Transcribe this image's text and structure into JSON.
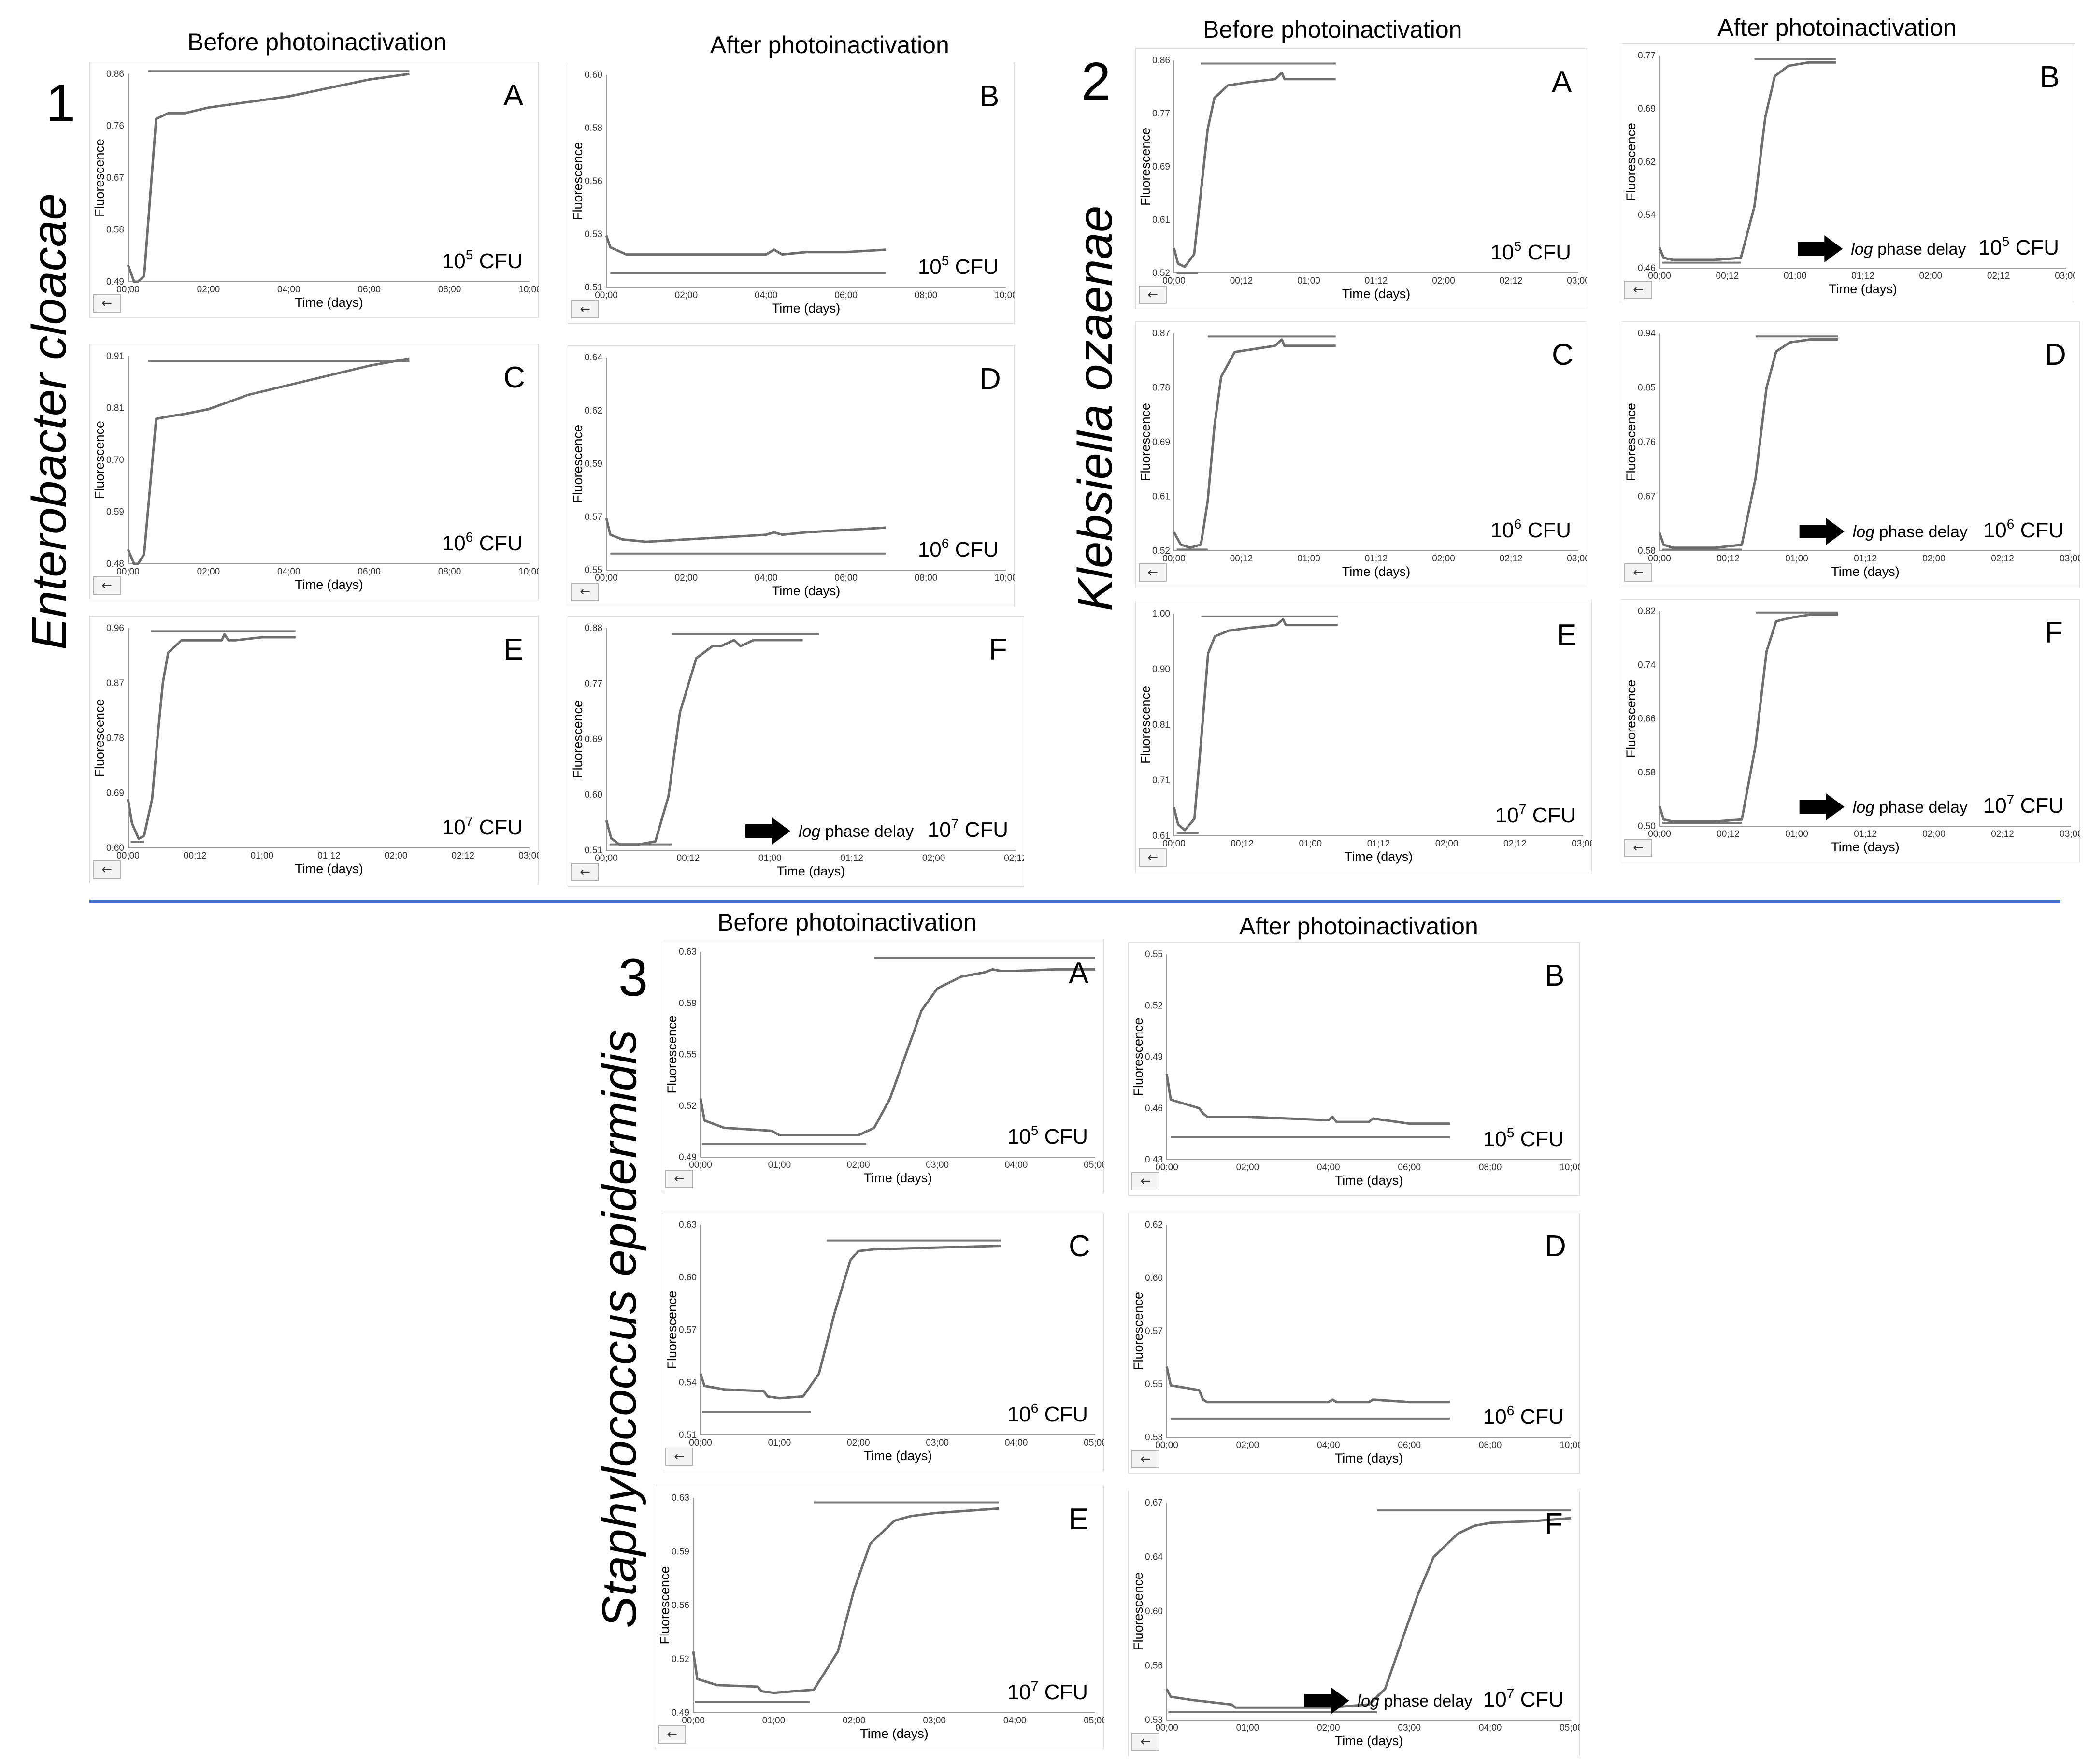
{
  "sections": [
    {
      "number": "1",
      "species": "Enterobacter cloacae",
      "before_label": "Before photoinactivation",
      "after_label": "After photoinactivation"
    },
    {
      "number": "2",
      "species": "Klebsiella ozaenae",
      "before_label": "Before photoinactivation",
      "after_label": "After photoinactivation"
    },
    {
      "number": "3",
      "species": "Staphylococcus epidermidis",
      "before_label": "Before photoinactivation",
      "after_label": "After photoinactivation"
    }
  ],
  "ylabel": "Fluorescence",
  "xlabel": "Time (days)",
  "cfu_unit": "CFU",
  "arrow_label_log": "log",
  "arrow_label_rest": "phase delay",
  "colors": {
    "curve": "#6e6e6e",
    "axis": "#9a9a9a",
    "panel_bg": "#ffffff",
    "frame": "#dcdcdc",
    "divider": "#4472c4"
  },
  "chart_data": [
    {
      "id": "1A",
      "type": "line",
      "letter": "A",
      "cfu_exp": "5",
      "yticks": [
        "0.86",
        "0.76",
        "0.67",
        "0.58",
        "0.49"
      ],
      "xticks": [
        "00;00",
        "02;00",
        "04;00",
        "06;00",
        "08;00",
        "10;00"
      ],
      "x": [
        0,
        0.15,
        0.25,
        0.4,
        0.7,
        1.0,
        1.4,
        2,
        3,
        4,
        5,
        6,
        7
      ],
      "y": [
        0.52,
        0.49,
        0.49,
        0.5,
        0.78,
        0.79,
        0.79,
        0.8,
        0.81,
        0.82,
        0.835,
        0.85,
        0.86
      ],
      "xlim": [
        0,
        10
      ],
      "ylim": [
        0.49,
        0.86
      ],
      "thresholds": [
        0.865
      ],
      "threshold_x": [
        [
          0.5,
          7
        ]
      ],
      "arrow": false
    },
    {
      "id": "1B",
      "type": "line",
      "letter": "B",
      "cfu_exp": "5",
      "yticks": [
        "0.60",
        "0.58",
        "0.56",
        "0.53",
        "0.51"
      ],
      "xticks": [
        "00;00",
        "02;00",
        "04;00",
        "06;00",
        "08;00",
        "10;00"
      ],
      "x": [
        0,
        0.1,
        0.5,
        1,
        2,
        3,
        4,
        4.2,
        4.4,
        5,
        6,
        7
      ],
      "y": [
        0.532,
        0.527,
        0.524,
        0.524,
        0.524,
        0.524,
        0.524,
        0.526,
        0.524,
        0.525,
        0.525,
        0.526
      ],
      "xlim": [
        0,
        10
      ],
      "ylim": [
        0.51,
        0.6
      ],
      "thresholds": [
        0.516
      ],
      "threshold_x": [
        [
          0.1,
          7
        ]
      ],
      "arrow": false
    },
    {
      "id": "1C",
      "type": "line",
      "letter": "C",
      "cfu_exp": "6",
      "yticks": [
        "0.91",
        "0.81",
        "0.70",
        "0.59",
        "0.48"
      ],
      "xticks": [
        "00;00",
        "02;00",
        "04;00",
        "06;00",
        "08;00",
        "10;00"
      ],
      "x": [
        0,
        0.15,
        0.25,
        0.4,
        0.7,
        1.0,
        1.4,
        2,
        3,
        4,
        5,
        6,
        7
      ],
      "y": [
        0.51,
        0.48,
        0.48,
        0.5,
        0.78,
        0.785,
        0.79,
        0.8,
        0.83,
        0.85,
        0.87,
        0.89,
        0.905
      ],
      "xlim": [
        0,
        10
      ],
      "ylim": [
        0.48,
        0.91
      ],
      "thresholds": [
        0.9
      ],
      "threshold_x": [
        [
          0.5,
          7
        ]
      ],
      "arrow": false
    },
    {
      "id": "1D",
      "type": "line",
      "letter": "D",
      "cfu_exp": "6",
      "yticks": [
        "0.64",
        "0.62",
        "0.59",
        "0.57",
        "0.55"
      ],
      "xticks": [
        "00;00",
        "02;00",
        "04;00",
        "06;00",
        "08;00",
        "10;00"
      ],
      "x": [
        0,
        0.1,
        0.4,
        1,
        2,
        3,
        4,
        4.2,
        4.4,
        5,
        6,
        7
      ],
      "y": [
        0.572,
        0.565,
        0.563,
        0.562,
        0.563,
        0.564,
        0.565,
        0.566,
        0.565,
        0.566,
        0.567,
        0.568
      ],
      "xlim": [
        0,
        10
      ],
      "ylim": [
        0.55,
        0.64
      ],
      "thresholds": [
        0.557
      ],
      "threshold_x": [
        [
          0.1,
          7
        ]
      ],
      "arrow": false
    },
    {
      "id": "1E",
      "type": "line",
      "letter": "E",
      "cfu_exp": "7",
      "yticks": [
        "0.96",
        "0.87",
        "0.78",
        "0.69",
        "0.60"
      ],
      "xticks": [
        "00;00",
        "00;12",
        "01;00",
        "01;12",
        "02;00",
        "02;12",
        "03;00"
      ],
      "x": [
        0,
        0.03,
        0.08,
        0.12,
        0.18,
        0.22,
        0.26,
        0.3,
        0.4,
        0.55,
        0.7,
        0.72,
        0.75,
        0.8,
        1.0,
        1.2,
        1.25
      ],
      "y": [
        0.68,
        0.64,
        0.615,
        0.62,
        0.68,
        0.78,
        0.87,
        0.92,
        0.94,
        0.94,
        0.94,
        0.95,
        0.94,
        0.94,
        0.945,
        0.945,
        0.945
      ],
      "xlim": [
        0,
        3
      ],
      "ylim": [
        0.6,
        0.96
      ],
      "thresholds": [
        0.955,
        0.61
      ],
      "threshold_x": [
        [
          0.17,
          1.25
        ],
        [
          0.02,
          0.12
        ]
      ],
      "arrow": false
    },
    {
      "id": "1F",
      "type": "line",
      "letter": "F",
      "cfu_exp": "7",
      "yticks": [
        "0.88",
        "0.77",
        "0.69",
        "0.60",
        "0.51"
      ],
      "xticks": [
        "00;00",
        "00;12",
        "01;00",
        "01;12",
        "02;00",
        "02;12"
      ],
      "x": [
        0,
        0.03,
        0.08,
        0.2,
        0.3,
        0.38,
        0.45,
        0.55,
        0.65,
        0.7,
        0.78,
        0.82,
        0.9,
        1.0,
        1.2
      ],
      "y": [
        0.56,
        0.53,
        0.52,
        0.52,
        0.525,
        0.6,
        0.74,
        0.83,
        0.85,
        0.85,
        0.86,
        0.85,
        0.86,
        0.86,
        0.86
      ],
      "xlim": [
        0,
        2.5
      ],
      "ylim": [
        0.51,
        0.88
      ],
      "thresholds": [
        0.87,
        0.52
      ],
      "threshold_x": [
        [
          0.4,
          1.3
        ],
        [
          0.02,
          0.4
        ]
      ],
      "arrow": true
    },
    {
      "id": "2A",
      "type": "line",
      "letter": "A",
      "cfu_exp": "5",
      "yticks": [
        "0.86",
        "0.77",
        "0.69",
        "0.61",
        "0.52"
      ],
      "xticks": [
        "00;00",
        "00;12",
        "01;00",
        "01;12",
        "02;00",
        "02;12",
        "03;00"
      ],
      "x": [
        0,
        0.03,
        0.08,
        0.15,
        0.2,
        0.25,
        0.3,
        0.4,
        0.55,
        0.75,
        0.8,
        0.82,
        0.9,
        1.0,
        1.2
      ],
      "y": [
        0.56,
        0.535,
        0.53,
        0.55,
        0.65,
        0.75,
        0.8,
        0.82,
        0.825,
        0.83,
        0.84,
        0.83,
        0.83,
        0.83,
        0.83
      ],
      "xlim": [
        0,
        3
      ],
      "ylim": [
        0.52,
        0.86
      ],
      "thresholds": [
        0.855,
        0.52
      ],
      "threshold_x": [
        [
          0.2,
          1.2
        ],
        [
          0.02,
          0.18
        ]
      ],
      "arrow": false
    },
    {
      "id": "2B",
      "type": "line",
      "letter": "B",
      "cfu_exp": "5",
      "yticks": [
        "0.77",
        "0.69",
        "0.62",
        "0.54",
        "0.46"
      ],
      "xticks": [
        "00;00",
        "00;12",
        "01;00",
        "01;12",
        "02;00",
        "02;12",
        "03;00"
      ],
      "x": [
        0,
        0.03,
        0.1,
        0.4,
        0.6,
        0.7,
        0.78,
        0.85,
        0.95,
        1.1,
        1.3
      ],
      "y": [
        0.49,
        0.475,
        0.472,
        0.472,
        0.475,
        0.55,
        0.68,
        0.74,
        0.755,
        0.76,
        0.76
      ],
      "xlim": [
        0,
        3
      ],
      "ylim": [
        0.46,
        0.77
      ],
      "thresholds": [
        0.765,
        0.468
      ],
      "threshold_x": [
        [
          0.7,
          1.3
        ],
        [
          0.02,
          0.6
        ]
      ],
      "arrow": true
    },
    {
      "id": "2C",
      "type": "line",
      "letter": "C",
      "cfu_exp": "6",
      "yticks": [
        "0.87",
        "0.78",
        "0.69",
        "0.61",
        "0.52"
      ],
      "xticks": [
        "00;00",
        "00;12",
        "01;00",
        "01;12",
        "02;00",
        "02;12",
        "03;00"
      ],
      "x": [
        0,
        0.05,
        0.12,
        0.2,
        0.25,
        0.3,
        0.35,
        0.45,
        0.6,
        0.75,
        0.8,
        0.82,
        0.9,
        1.0,
        1.2
      ],
      "y": [
        0.55,
        0.53,
        0.525,
        0.53,
        0.6,
        0.72,
        0.8,
        0.84,
        0.845,
        0.85,
        0.86,
        0.85,
        0.85,
        0.85,
        0.85
      ],
      "xlim": [
        0,
        3
      ],
      "ylim": [
        0.52,
        0.87
      ],
      "thresholds": [
        0.865,
        0.522
      ],
      "threshold_x": [
        [
          0.25,
          1.2
        ],
        [
          0.02,
          0.25
        ]
      ],
      "arrow": false
    },
    {
      "id": "2D",
      "type": "line",
      "letter": "D",
      "cfu_exp": "6",
      "yticks": [
        "0.94",
        "0.85",
        "0.76",
        "0.67",
        "0.58"
      ],
      "xticks": [
        "00;00",
        "00;12",
        "01;00",
        "01;12",
        "02;00",
        "02;12",
        "03;00"
      ],
      "x": [
        0,
        0.03,
        0.1,
        0.4,
        0.6,
        0.7,
        0.78,
        0.85,
        0.95,
        1.1,
        1.3
      ],
      "y": [
        0.61,
        0.59,
        0.585,
        0.585,
        0.59,
        0.7,
        0.85,
        0.91,
        0.925,
        0.93,
        0.93
      ],
      "xlim": [
        0,
        3
      ],
      "ylim": [
        0.58,
        0.94
      ],
      "thresholds": [
        0.935,
        0.582
      ],
      "threshold_x": [
        [
          0.7,
          1.3
        ],
        [
          0.02,
          0.6
        ]
      ],
      "arrow": true
    },
    {
      "id": "2E",
      "type": "line",
      "letter": "E",
      "cfu_exp": "7",
      "yticks": [
        "1.00",
        "0.90",
        "0.81",
        "0.71",
        "0.61"
      ],
      "xticks": [
        "00;00",
        "00;12",
        "01;00",
        "01;12",
        "02;00",
        "02;12",
        "03;00"
      ],
      "x": [
        0,
        0.03,
        0.08,
        0.15,
        0.2,
        0.25,
        0.3,
        0.4,
        0.55,
        0.75,
        0.8,
        0.82,
        0.9,
        1.0,
        1.2
      ],
      "y": [
        0.66,
        0.63,
        0.62,
        0.64,
        0.78,
        0.93,
        0.96,
        0.97,
        0.975,
        0.98,
        0.99,
        0.98,
        0.98,
        0.98,
        0.98
      ],
      "xlim": [
        0,
        3
      ],
      "ylim": [
        0.61,
        1.0
      ],
      "thresholds": [
        0.995,
        0.615
      ],
      "threshold_x": [
        [
          0.2,
          1.2
        ],
        [
          0.02,
          0.18
        ]
      ],
      "arrow": false
    },
    {
      "id": "2F",
      "type": "line",
      "letter": "F",
      "cfu_exp": "7",
      "yticks": [
        "0.82",
        "0.74",
        "0.66",
        "0.58",
        "0.50"
      ],
      "xticks": [
        "00;00",
        "00;12",
        "01;00",
        "01;12",
        "02;00",
        "02;12",
        "03;00"
      ],
      "x": [
        0,
        0.03,
        0.1,
        0.4,
        0.6,
        0.7,
        0.78,
        0.85,
        0.95,
        1.1,
        1.3
      ],
      "y": [
        0.53,
        0.51,
        0.507,
        0.507,
        0.51,
        0.62,
        0.76,
        0.805,
        0.81,
        0.815,
        0.815
      ],
      "xlim": [
        0,
        3
      ],
      "ylim": [
        0.5,
        0.82
      ],
      "thresholds": [
        0.818,
        0.505
      ],
      "threshold_x": [
        [
          0.7,
          1.3
        ],
        [
          0.02,
          0.6
        ]
      ],
      "arrow": true
    },
    {
      "id": "3A",
      "type": "line",
      "letter": "A",
      "cfu_exp": "5",
      "yticks": [
        "0.63",
        "0.59",
        "0.55",
        "0.52",
        "0.49"
      ],
      "xticks": [
        "00;00",
        "01;00",
        "02;00",
        "03;00",
        "04;00",
        "05;00"
      ],
      "x": [
        0,
        0.05,
        0.3,
        0.9,
        1.0,
        1.5,
        2.0,
        2.2,
        2.4,
        2.6,
        2.8,
        3.0,
        3.3,
        3.6,
        3.7,
        3.8,
        4.0,
        4.5,
        5.0
      ],
      "y": [
        0.53,
        0.515,
        0.51,
        0.508,
        0.505,
        0.505,
        0.505,
        0.51,
        0.53,
        0.56,
        0.59,
        0.605,
        0.613,
        0.616,
        0.618,
        0.617,
        0.617,
        0.618,
        0.618
      ],
      "xlim": [
        0,
        5
      ],
      "ylim": [
        0.49,
        0.63
      ],
      "thresholds": [
        0.626,
        0.499
      ],
      "threshold_x": [
        [
          2.2,
          5.0
        ],
        [
          0.02,
          2.1
        ]
      ],
      "arrow": false
    },
    {
      "id": "3B",
      "type": "line",
      "letter": "B",
      "cfu_exp": "5",
      "yticks": [
        "0.55",
        "0.52",
        "0.49",
        "0.46",
        "0.43"
      ],
      "xticks": [
        "00;00",
        "02;00",
        "04;00",
        "06;00",
        "08;00",
        "10;00"
      ],
      "x": [
        0,
        0.1,
        0.8,
        0.9,
        1,
        2,
        4,
        4.1,
        4.2,
        5,
        5.1,
        6,
        7
      ],
      "y": [
        0.48,
        0.465,
        0.46,
        0.457,
        0.455,
        0.455,
        0.453,
        0.455,
        0.452,
        0.452,
        0.454,
        0.451,
        0.451
      ],
      "xlim": [
        0,
        10
      ],
      "ylim": [
        0.43,
        0.55
      ],
      "thresholds": [
        0.443
      ],
      "threshold_x": [
        [
          0.1,
          7
        ]
      ],
      "arrow": false
    },
    {
      "id": "3C",
      "type": "line",
      "letter": "C",
      "cfu_exp": "6",
      "yticks": [
        "0.63",
        "0.60",
        "0.57",
        "0.54",
        "0.51"
      ],
      "xticks": [
        "00;00",
        "01;00",
        "02;00",
        "03;00",
        "04;00",
        "05;00"
      ],
      "x": [
        0,
        0.05,
        0.3,
        0.8,
        0.85,
        1.0,
        1.3,
        1.5,
        1.7,
        1.9,
        2.0,
        2.2,
        3.0,
        3.8
      ],
      "y": [
        0.545,
        0.538,
        0.536,
        0.535,
        0.532,
        0.531,
        0.532,
        0.545,
        0.58,
        0.61,
        0.615,
        0.616,
        0.617,
        0.618
      ],
      "xlim": [
        0,
        5
      ],
      "ylim": [
        0.51,
        0.63
      ],
      "thresholds": [
        0.621,
        0.523
      ],
      "threshold_x": [
        [
          1.6,
          3.8
        ],
        [
          0.02,
          1.4
        ]
      ],
      "arrow": false
    },
    {
      "id": "3D",
      "type": "line",
      "letter": "D",
      "cfu_exp": "6",
      "yticks": [
        "0.62",
        "0.60",
        "0.57",
        "0.55",
        "0.53"
      ],
      "xticks": [
        "00;00",
        "02;00",
        "04;00",
        "06;00",
        "08;00",
        "10;00"
      ],
      "x": [
        0,
        0.1,
        0.8,
        0.9,
        1,
        2,
        4,
        4.1,
        4.2,
        5,
        5.1,
        6,
        7
      ],
      "y": [
        0.56,
        0.552,
        0.55,
        0.546,
        0.545,
        0.545,
        0.545,
        0.546,
        0.545,
        0.545,
        0.546,
        0.545,
        0.545
      ],
      "xlim": [
        0,
        10
      ],
      "ylim": [
        0.53,
        0.62
      ],
      "thresholds": [
        0.538
      ],
      "threshold_x": [
        [
          0.1,
          7
        ]
      ],
      "arrow": false
    },
    {
      "id": "3E",
      "type": "line",
      "letter": "E",
      "cfu_exp": "7",
      "yticks": [
        "0.63",
        "0.59",
        "0.56",
        "0.52",
        "0.49"
      ],
      "xticks": [
        "00;00",
        "01;00",
        "02;00",
        "03;00",
        "04;00",
        "05;00"
      ],
      "x": [
        0,
        0.05,
        0.3,
        0.8,
        0.85,
        1.0,
        1.5,
        1.8,
        2.0,
        2.2,
        2.5,
        2.7,
        3.0,
        3.8
      ],
      "y": [
        0.53,
        0.512,
        0.508,
        0.507,
        0.504,
        0.503,
        0.505,
        0.53,
        0.57,
        0.6,
        0.615,
        0.618,
        0.62,
        0.623
      ],
      "xlim": [
        0,
        5
      ],
      "ylim": [
        0.49,
        0.63
      ],
      "thresholds": [
        0.627,
        0.497
      ],
      "threshold_x": [
        [
          1.5,
          3.8
        ],
        [
          0.02,
          1.45
        ]
      ],
      "arrow": false
    },
    {
      "id": "3F",
      "type": "line",
      "letter": "F",
      "cfu_exp": "7",
      "yticks": [
        "0.67",
        "0.64",
        "0.60",
        "0.56",
        "0.53"
      ],
      "xticks": [
        "00;00",
        "01;00",
        "02;00",
        "03;00",
        "04;00",
        "05;00"
      ],
      "x": [
        0,
        0.05,
        0.3,
        0.8,
        0.85,
        1.0,
        2.0,
        2.5,
        2.7,
        2.9,
        3.1,
        3.3,
        3.6,
        3.8,
        4.0,
        4.5,
        5.0
      ],
      "y": [
        0.55,
        0.545,
        0.543,
        0.54,
        0.538,
        0.538,
        0.538,
        0.54,
        0.55,
        0.58,
        0.61,
        0.635,
        0.65,
        0.655,
        0.657,
        0.658,
        0.66
      ],
      "xlim": [
        0,
        5
      ],
      "ylim": [
        0.53,
        0.67
      ],
      "thresholds": [
        0.665,
        0.535
      ],
      "threshold_x": [
        [
          2.6,
          5.0
        ],
        [
          0.02,
          2.6
        ]
      ],
      "arrow": true
    }
  ]
}
